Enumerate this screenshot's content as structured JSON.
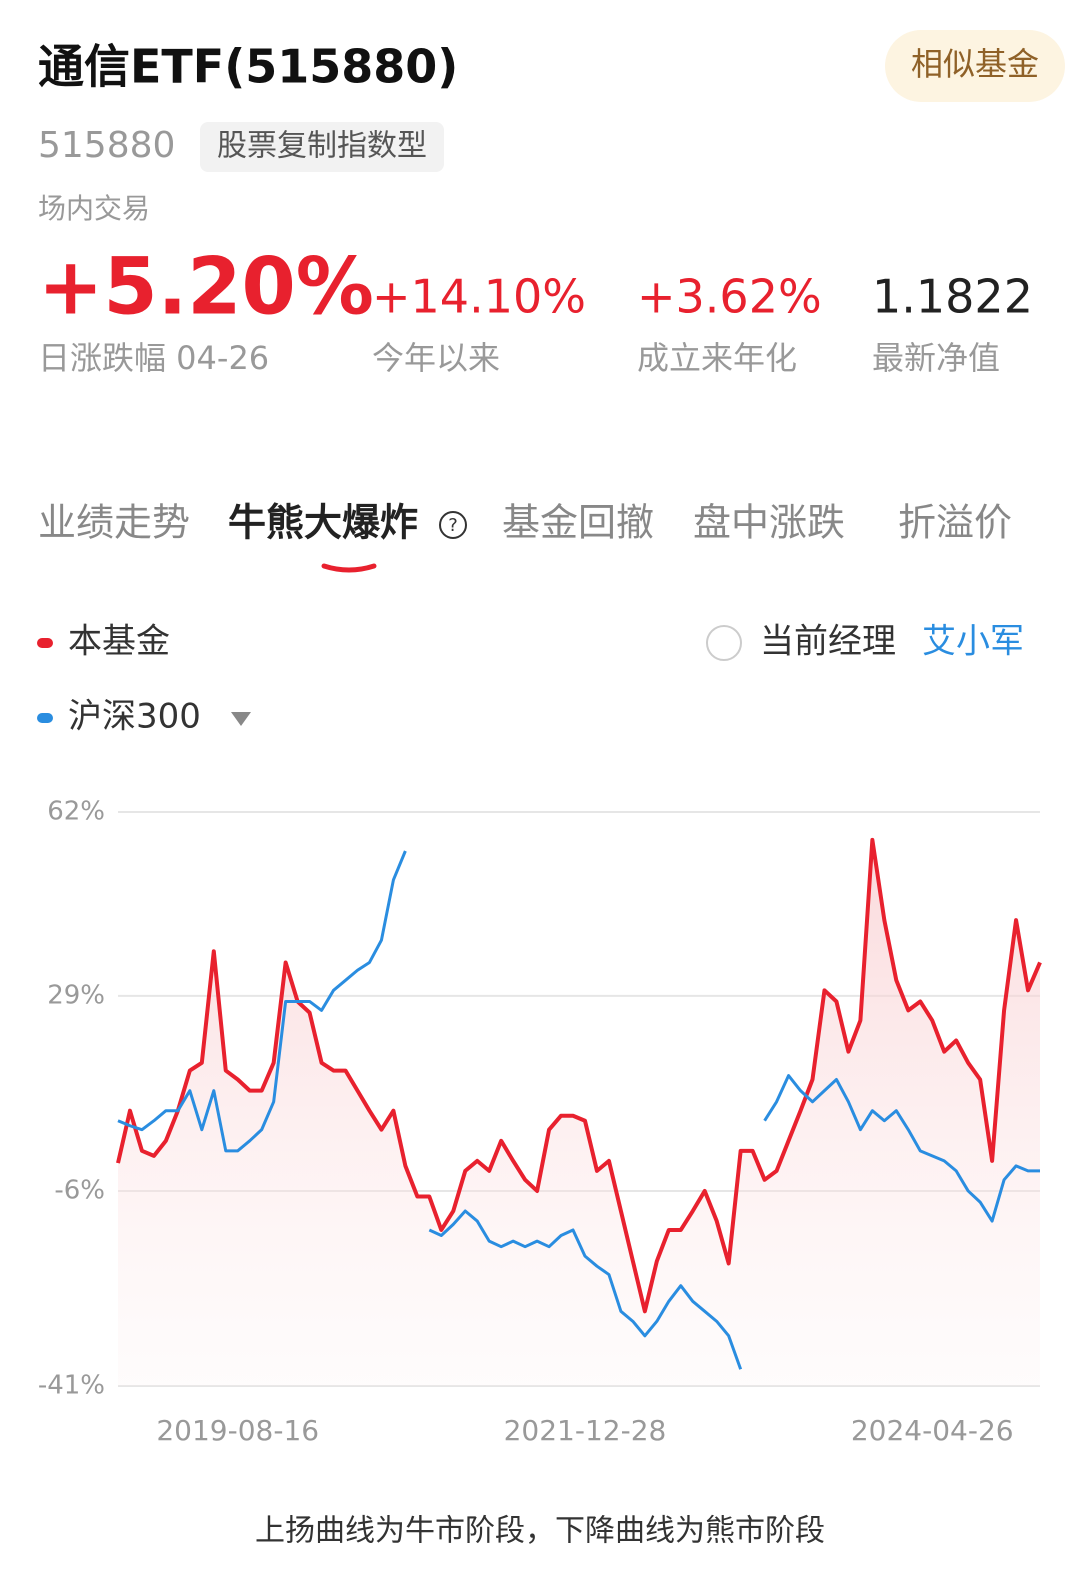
{
  "header": {
    "title": "通信ETF(515880)",
    "button": "相似基金",
    "code": "515880",
    "tag": "股票复制指数型",
    "market": "场内交易"
  },
  "stats": [
    {
      "value": "+5.20%",
      "label": "日涨跌幅 04-26"
    },
    {
      "value": "+14.10%",
      "label": "今年以来"
    },
    {
      "value": "+3.62%",
      "label": "成立来年化"
    },
    {
      "value": "1.1822",
      "label": "最新净值"
    }
  ],
  "tabs": [
    "业绩走势",
    "牛熊大爆炸",
    "基金回撤",
    "盘中涨跌",
    "折溢价"
  ],
  "legend": {
    "manager_label": "当前经理",
    "manager": "艾小军"
  },
  "footer": "上扬曲线为牛市阶段，下降曲线为熊市阶段",
  "chart_data": {
    "type": "line",
    "categories": [
      null,
      null,
      null,
      null,
      null,
      null,
      null,
      null,
      null,
      null,
      "2019-08-16",
      null,
      null,
      null,
      null,
      null,
      null,
      null,
      null,
      null,
      null,
      null,
      null,
      null,
      null,
      null,
      null,
      null,
      null,
      null,
      null,
      null,
      null,
      null,
      null,
      null,
      null,
      null,
      null,
      "2021-12-28",
      null,
      null,
      null,
      null,
      null,
      null,
      null,
      null,
      null,
      null,
      null,
      null,
      null,
      null,
      null,
      null,
      null,
      null,
      null,
      null,
      null,
      null,
      null,
      null,
      null,
      null,
      null,
      null,
      "2024-04-26",
      null,
      null,
      null,
      null,
      null,
      null,
      null,
      null,
      null
    ],
    "series": [
      {
        "name": "本基金",
        "color": "#e8212e",
        "values": [
          -1,
          8.4,
          1.2,
          0.3,
          3,
          8.4,
          15.6,
          17,
          37,
          15.6,
          14,
          12,
          12,
          17,
          35,
          28,
          26,
          17,
          15.6,
          15.6,
          12,
          8.4,
          5,
          8.4,
          -1.5,
          -7,
          -7,
          -13,
          -9.6,
          -2.4,
          -0.6,
          -2.4,
          3,
          -0.6,
          -4,
          -6,
          5,
          7.5,
          7.5,
          6.6,
          -2.4,
          -0.6,
          -9.6,
          -18.6,
          -27.6,
          -18.6,
          -13,
          -13,
          -9.6,
          -6,
          -11.4,
          -19,
          1.2,
          1.2,
          -4,
          -2.4,
          3,
          8.4,
          14,
          30,
          28,
          19,
          24.6,
          57,
          42.6,
          31.8,
          26.4,
          28,
          24.6,
          19,
          21,
          17,
          14,
          -0.6,
          26.4,
          42.6,
          30,
          35
        ]
      },
      {
        "name": "沪深300",
        "color": "#2a8de0",
        "values": [
          6.6,
          5.7,
          5,
          6.6,
          8.4,
          8.4,
          12,
          5,
          12,
          1.2,
          1.2,
          3,
          5,
          10,
          28,
          28,
          28,
          26.4,
          30,
          31.8,
          33.6,
          35,
          39,
          49.8,
          55,
          null,
          -13,
          -14,
          -12,
          -9.6,
          -11.4,
          -15,
          -16,
          -15,
          -16,
          -15,
          -16,
          -14,
          -13,
          -17.7,
          -19.5,
          -21,
          -27.6,
          -29.4,
          -32,
          -29.4,
          -25.8,
          -23,
          -25.8,
          -27.6,
          -29.4,
          -32,
          -38,
          null,
          6.6,
          10,
          14.7,
          12,
          10,
          12,
          14,
          10,
          5,
          8.4,
          6.6,
          8.4,
          5,
          1.2,
          0.3,
          -0.6,
          -2.4,
          -6,
          -8,
          -11.4,
          -4,
          -1.5,
          -2.4,
          -2.4
        ]
      }
    ],
    "ylim": [
      -41,
      62
    ],
    "yticks": [
      {
        "value": 62,
        "label": "62%"
      },
      {
        "value": 29,
        "label": "29%"
      },
      {
        "value": -6,
        "label": "-6%"
      },
      {
        "value": -41,
        "label": "-41%"
      }
    ],
    "grid": true
  }
}
